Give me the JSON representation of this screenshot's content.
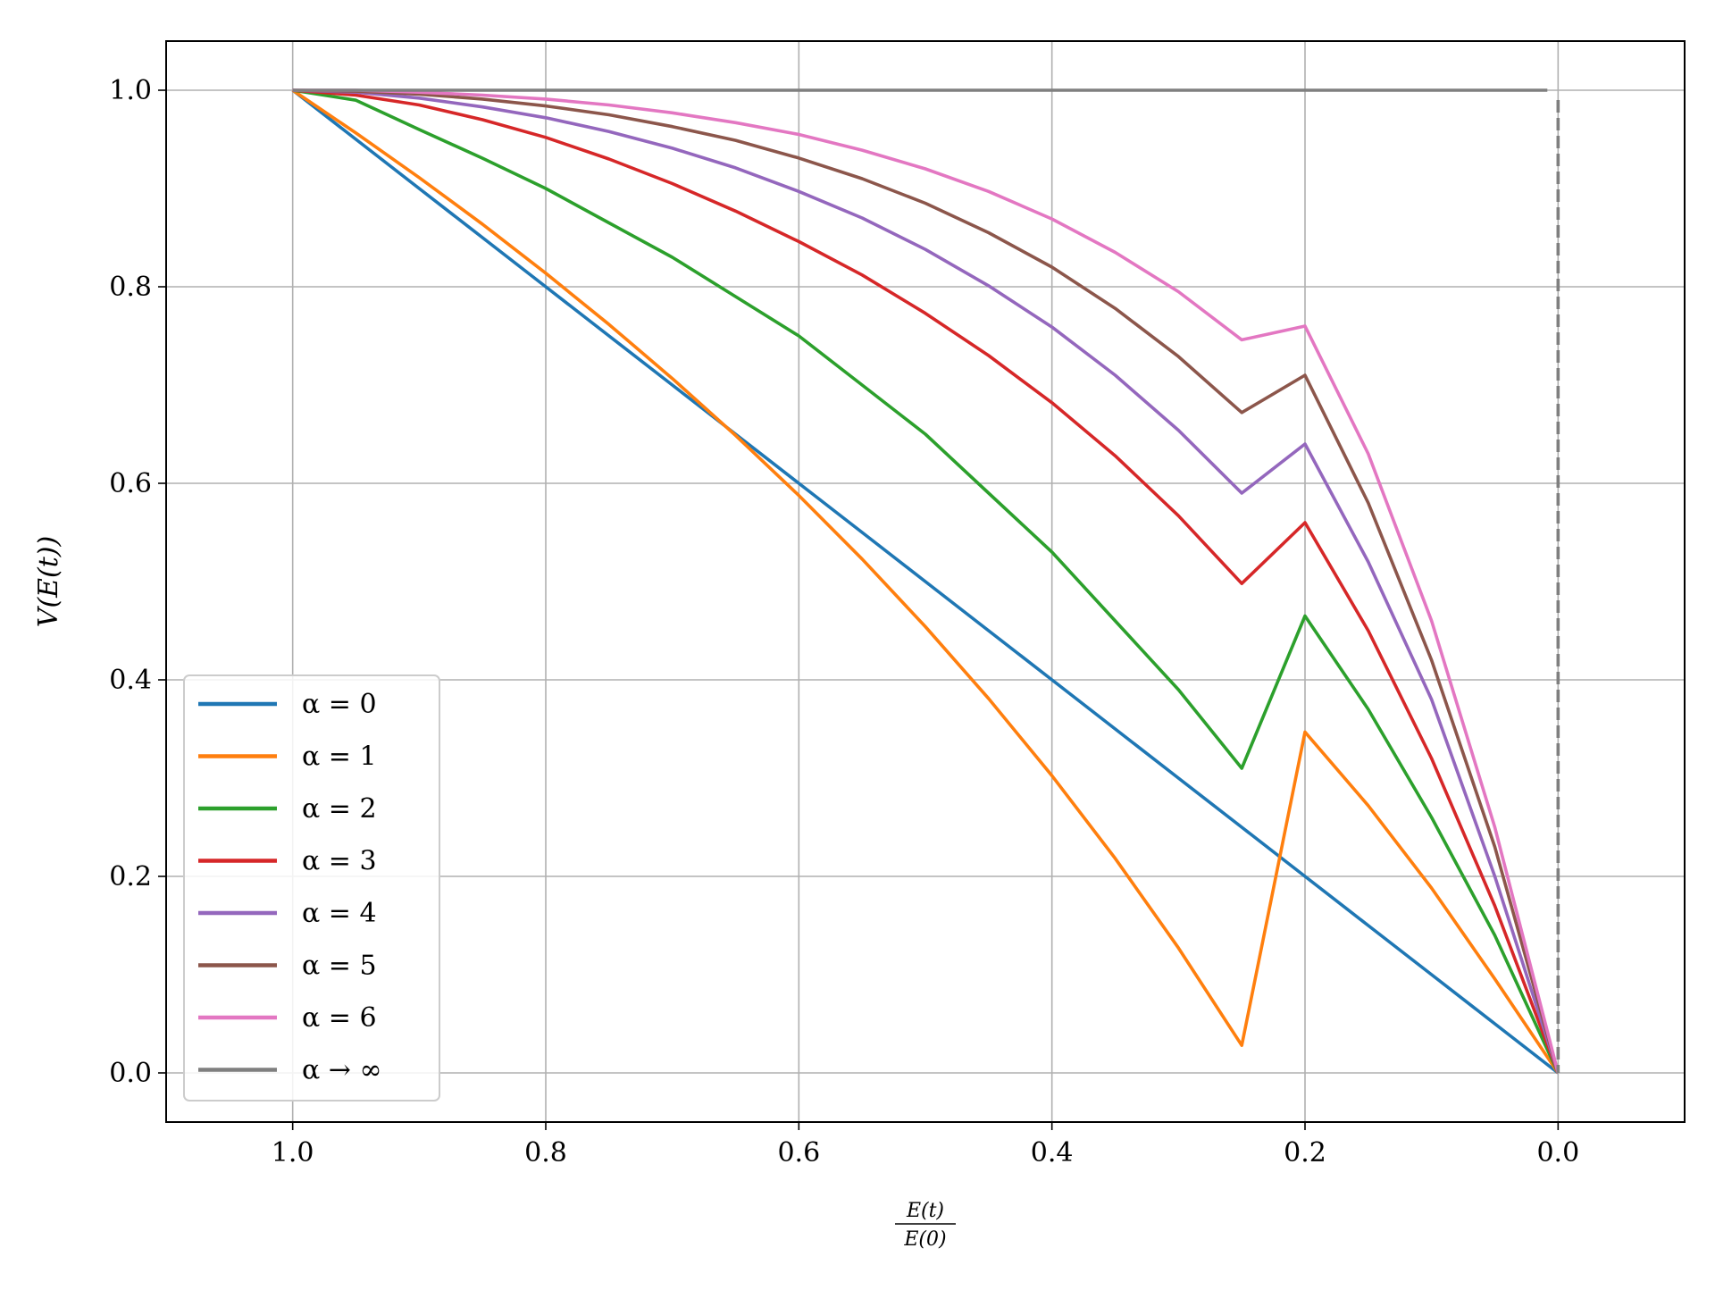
{
  "chart_data": {
    "type": "line",
    "title": "",
    "xlabel": {
      "numerator": "E(t)",
      "denominator": "E(0)"
    },
    "ylabel": "V(E(t))",
    "xlim": [
      1.1,
      -0.1
    ],
    "ylim": [
      -0.05,
      1.05
    ],
    "x_inverted": true,
    "grid": true,
    "legend_placement": "lower-left",
    "x_ticks": [
      1.0,
      0.8,
      0.6,
      0.4,
      0.2,
      0.0
    ],
    "x_tick_labels": [
      "1.0",
      "0.8",
      "0.6",
      "0.4",
      "0.2",
      "0.0"
    ],
    "y_ticks": [
      0.0,
      0.2,
      0.4,
      0.6,
      0.8,
      1.0
    ],
    "y_tick_labels": [
      "0.0",
      "0.2",
      "0.4",
      "0.6",
      "0.8",
      "1.0"
    ],
    "x": [
      1.0,
      0.95,
      0.9,
      0.85,
      0.8,
      0.75,
      0.7,
      0.65,
      0.6,
      0.55,
      0.5,
      0.45,
      0.4,
      0.35,
      0.3,
      0.25,
      0.2,
      0.15,
      0.1,
      0.05,
      0.0
    ],
    "series": [
      {
        "name": "α = 0",
        "color": "#1f77b4",
        "values": [
          1.0,
          0.95,
          0.9,
          0.85,
          0.8,
          0.75,
          0.7,
          0.65,
          0.6,
          0.55,
          0.5,
          0.45,
          0.4,
          0.35,
          0.3,
          0.25,
          0.2,
          0.15,
          0.1,
          0.05,
          0.0
        ]
      },
      {
        "name": "α = 1",
        "color": "#ff7f0e",
        "values": [
          1.0,
          0.9565,
          0.9111,
          0.8636,
          0.8138,
          0.7616,
          0.7066,
          0.6487,
          0.5876,
          0.5229,
          0.4541,
          0.3809,
          0.3025,
          0.2183,
          0.1272,
          0.028,
          0.3469,
          0.272,
          0.1881,
          0.0956,
          0.0
        ]
      },
      {
        "name": "α = 2",
        "color": "#2ca02c",
        "values": [
          1.0,
          0.9898,
          0.96,
          0.9308,
          0.9,
          0.865,
          0.83,
          0.79,
          0.75,
          0.7,
          0.65,
          0.59,
          0.53,
          0.46,
          0.39,
          0.31,
          0.465,
          0.37,
          0.26,
          0.14,
          0.0
        ]
      },
      {
        "name": "α = 3",
        "color": "#d62728",
        "values": [
          1.0,
          0.995,
          0.985,
          0.97,
          0.952,
          0.93,
          0.905,
          0.877,
          0.846,
          0.812,
          0.773,
          0.73,
          0.682,
          0.628,
          0.567,
          0.498,
          0.56,
          0.45,
          0.32,
          0.17,
          0.0
        ]
      },
      {
        "name": "α = 4",
        "color": "#9467bd",
        "values": [
          1.0,
          0.998,
          0.992,
          0.983,
          0.972,
          0.958,
          0.941,
          0.921,
          0.897,
          0.87,
          0.838,
          0.801,
          0.759,
          0.71,
          0.654,
          0.59,
          0.64,
          0.52,
          0.38,
          0.2,
          0.0
        ]
      },
      {
        "name": "α = 5",
        "color": "#8c564b",
        "values": [
          1.0,
          0.999,
          0.996,
          0.991,
          0.984,
          0.975,
          0.963,
          0.949,
          0.931,
          0.91,
          0.885,
          0.855,
          0.82,
          0.778,
          0.729,
          0.672,
          0.71,
          0.58,
          0.42,
          0.23,
          0.0
        ]
      },
      {
        "name": "α = 6",
        "color": "#e377c2",
        "values": [
          1.0,
          1.0,
          0.998,
          0.995,
          0.991,
          0.985,
          0.977,
          0.967,
          0.955,
          0.939,
          0.92,
          0.897,
          0.869,
          0.835,
          0.795,
          0.746,
          0.76,
          0.63,
          0.46,
          0.25,
          0.0
        ]
      },
      {
        "name": "α → ∞",
        "color": "#7f7f7f",
        "values": [
          1.0,
          1.0,
          1.0,
          1.0,
          1.0,
          1.0,
          1.0,
          1.0,
          1.0,
          1.0,
          1.0,
          1.0,
          1.0,
          1.0,
          1.0,
          1.0,
          1.0,
          1.0,
          1.0,
          1.0,
          1.0
        ]
      }
    ]
  }
}
